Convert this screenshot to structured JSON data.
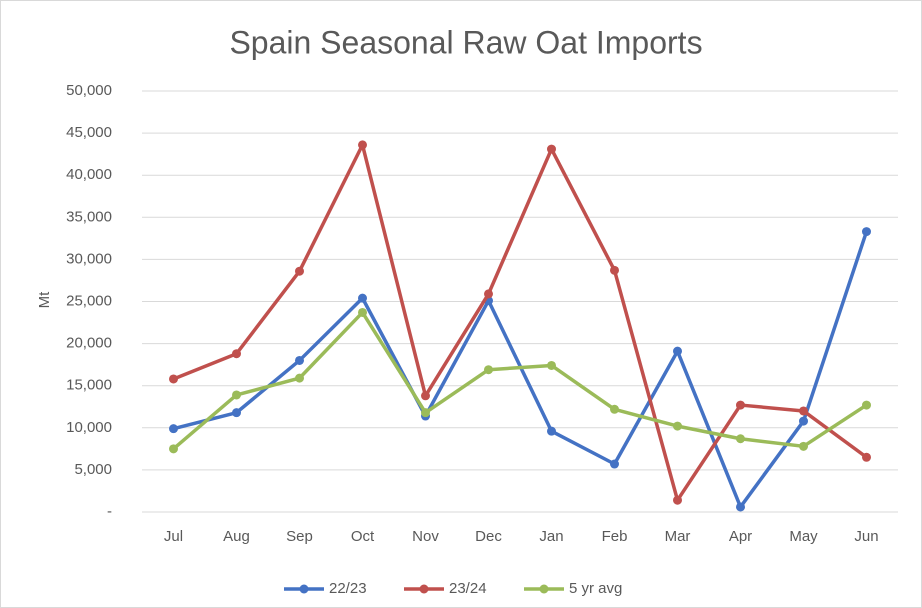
{
  "chart_data": {
    "type": "line",
    "title": "Spain Seasonal Raw Oat Imports",
    "y_label": "Mt",
    "categories": [
      "Jul",
      "Aug",
      "Sep",
      "Oct",
      "Nov",
      "Dec",
      "Jan",
      "Feb",
      "Mar",
      "Apr",
      "May",
      "Jun"
    ],
    "series": [
      {
        "name": "22/23",
        "color": "#4472c4",
        "values": [
          9900,
          11800,
          18000,
          25400,
          11400,
          25100,
          9600,
          5700,
          19100,
          600,
          10800,
          33300
        ]
      },
      {
        "name": "23/24",
        "color": "#c0504d",
        "values": [
          15800,
          18800,
          28600,
          43600,
          13800,
          25900,
          43100,
          28700,
          1400,
          12700,
          12000,
          6500
        ]
      },
      {
        "name": "5 yr avg",
        "color": "#9bbb59",
        "values": [
          7500,
          13900,
          15900,
          23700,
          11800,
          16900,
          17400,
          12200,
          10200,
          8700,
          7800,
          12700
        ]
      }
    ],
    "ylim": [
      0,
      50000
    ],
    "yticks": [
      {
        "value": 0,
        "label": "-"
      },
      {
        "value": 5000,
        "label": "5,000"
      },
      {
        "value": 10000,
        "label": "10,000"
      },
      {
        "value": 15000,
        "label": "15,000"
      },
      {
        "value": 20000,
        "label": "20,000"
      },
      {
        "value": 25000,
        "label": "25,000"
      },
      {
        "value": 30000,
        "label": "30,000"
      },
      {
        "value": 35000,
        "label": "35,000"
      },
      {
        "value": 40000,
        "label": "40,000"
      },
      {
        "value": 45000,
        "label": "45,000"
      },
      {
        "value": 50000,
        "label": "50,000"
      }
    ],
    "grid": true,
    "legend": "bottom"
  }
}
